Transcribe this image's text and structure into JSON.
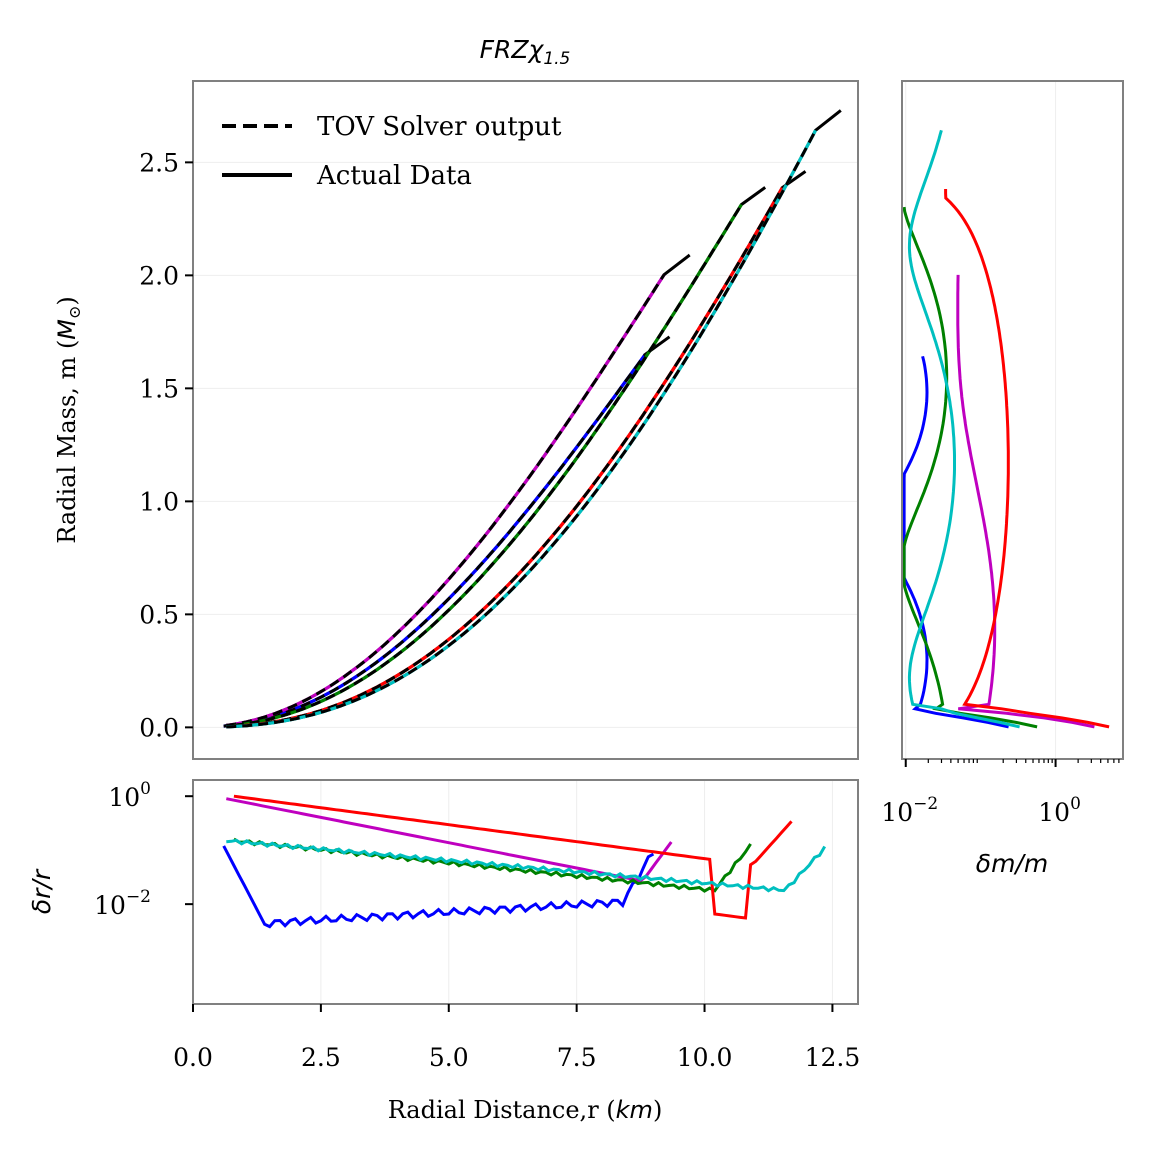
{
  "chart_data": [
    {
      "id": "main",
      "type": "line",
      "title": "FRZχ1.5",
      "title_parts": {
        "base": "FRZχ",
        "sub": "1.5"
      },
      "xlabel": "",
      "ylabel": "Radial Mass, m (M⊙)",
      "ylabel_parts": {
        "text": "Radial Mass, m (",
        "sym": "M",
        "sub": "⊙",
        "close": ")"
      },
      "xlim": [
        0,
        13
      ],
      "ylim": [
        -0.14,
        2.86
      ],
      "yticks": [
        0.0,
        0.5,
        1.0,
        1.5,
        2.0,
        2.5
      ],
      "ytick_labels": [
        "0.0",
        "0.5",
        "1.0",
        "1.5",
        "2.0",
        "2.5"
      ],
      "legend": {
        "position": "top-left",
        "entries": [
          {
            "label": "TOV Solver output",
            "style": "dashed"
          },
          {
            "label": "Actual Data",
            "style": "solid"
          }
        ]
      },
      "series": [
        {
          "name": "blue",
          "color": "#0000ff",
          "R": 9.0,
          "M": 1.7,
          "p": 2.25,
          "r0": 0.6
        },
        {
          "name": "magenta",
          "color": "#bf00bf",
          "R": 9.4,
          "M": 2.07,
          "p": 2.2,
          "r0": 0.65
        },
        {
          "name": "green",
          "color": "#008000",
          "R": 10.9,
          "M": 2.38,
          "p": 2.3,
          "r0": 0.8
        },
        {
          "name": "red",
          "color": "#ff0000",
          "R": 11.7,
          "M": 2.46,
          "p": 2.5,
          "r0": 0.8
        },
        {
          "name": "cyan",
          "color": "#00bfbf",
          "R": 12.4,
          "M": 2.74,
          "p": 2.55,
          "r0": 0.65
        }
      ]
    },
    {
      "id": "right",
      "type": "line",
      "xlabel": "δm/m",
      "xscale": "log",
      "xlim_log10": [
        -2.05,
        0.9
      ],
      "xticks": [
        "10^-2",
        "10^0"
      ],
      "xtick_parts": [
        {
          "base": "10",
          "exp": "−2"
        },
        {
          "base": "10",
          "exp": "0"
        }
      ]
    },
    {
      "id": "bottom",
      "type": "line",
      "xlabel": "Radial Distance,r (km)",
      "xlabel_parts": {
        "text": "Radial Distance,r (",
        "sym": "km",
        "close": ")"
      },
      "ylabel": "δr/r",
      "yscale": "log",
      "ylim_log10": [
        -3.85,
        0.3
      ],
      "xticks": [
        0.0,
        2.5,
        5.0,
        7.5,
        10.0,
        12.5
      ],
      "xtick_labels": [
        "0.0",
        "2.5",
        "5.0",
        "7.5",
        "10.0",
        "12.5"
      ],
      "yticks": [
        "10^0",
        "10^-2"
      ],
      "ytick_parts": [
        {
          "base": "10",
          "exp": "0"
        },
        {
          "base": "10",
          "exp": "−2"
        }
      ]
    }
  ]
}
